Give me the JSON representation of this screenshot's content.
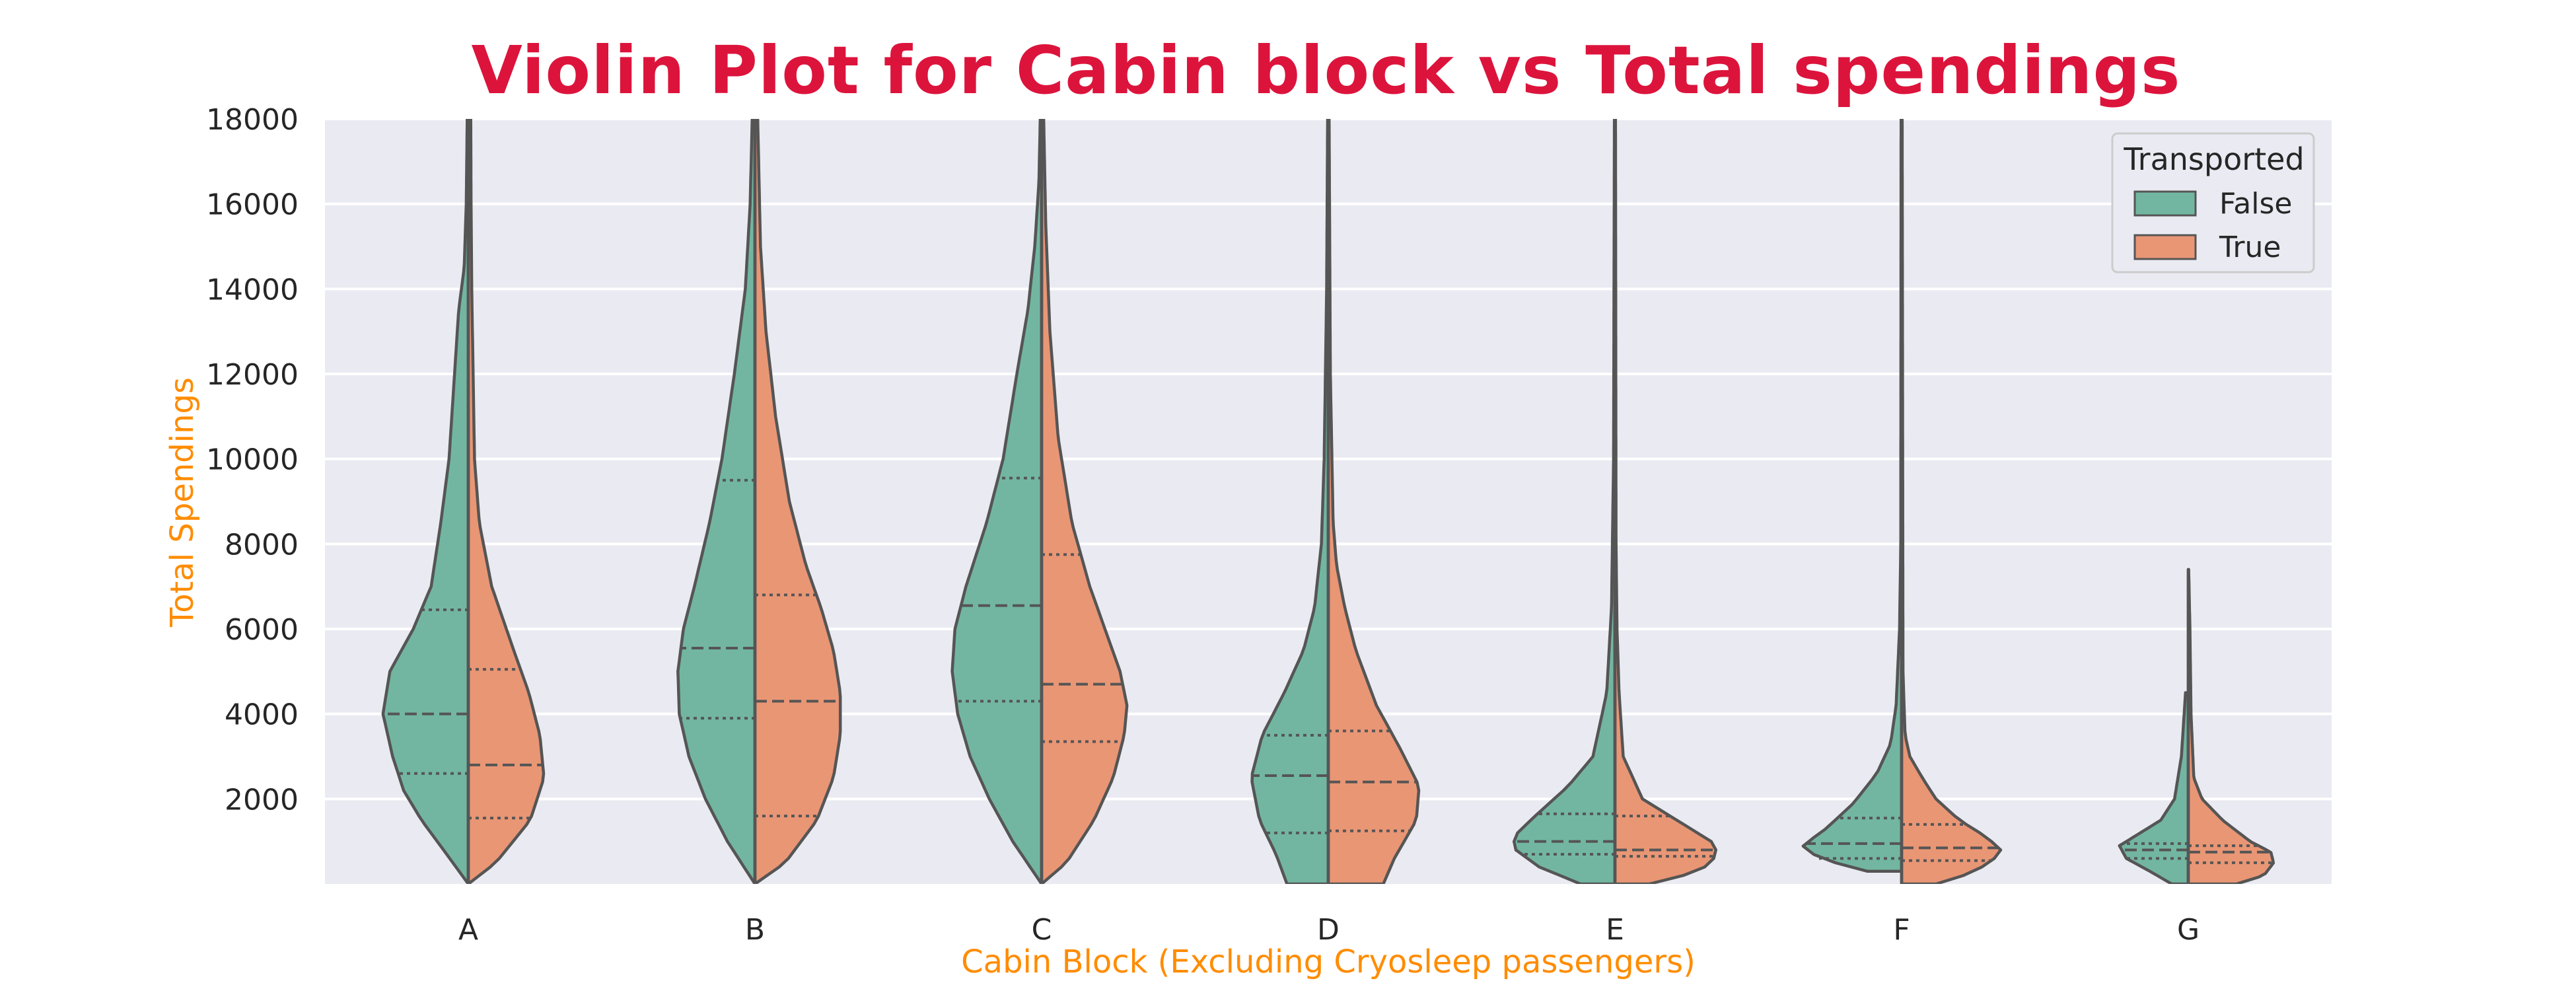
{
  "chart_data": {
    "type": "violin",
    "title": "Violin Plot for Cabin block vs Total spendings",
    "xlabel": "Cabin Block (Excluding Cryosleep passengers)",
    "ylabel": "Total Spendings",
    "ylim": [
      0,
      18000
    ],
    "yticks": [
      2000,
      4000,
      6000,
      8000,
      10000,
      12000,
      14000,
      16000,
      18000
    ],
    "categories": [
      "A",
      "B",
      "C",
      "D",
      "E",
      "F",
      "G"
    ],
    "legend": {
      "title": "Transported",
      "position": "top-right",
      "entries": [
        "False",
        "True"
      ]
    },
    "grid": true,
    "colors": {
      "False": "#72b6a1",
      "True": "#e99675",
      "background": "#eaeaf2",
      "title": "#dc143c",
      "axis_label": "#ff8c00",
      "outline": "#555555"
    },
    "series": [
      {
        "name": "False",
        "quartiles": [
          [
            2600,
            4000,
            6450
          ],
          [
            3900,
            5550,
            9500
          ],
          [
            4300,
            6550,
            9550
          ],
          [
            1200,
            2550,
            3500
          ],
          [
            700,
            1000,
            1650
          ],
          [
            600,
            950,
            1550
          ],
          [
            600,
            800,
            950
          ]
        ],
        "profiles": [
          [
            [
              0,
              0.0
            ],
            [
              800,
              0.18
            ],
            [
              1500,
              0.34
            ],
            [
              2200,
              0.47
            ],
            [
              3000,
              0.55
            ],
            [
              4000,
              0.62
            ],
            [
              5000,
              0.57
            ],
            [
              6000,
              0.4
            ],
            [
              7000,
              0.27
            ],
            [
              8500,
              0.2
            ],
            [
              10000,
              0.14
            ],
            [
              12000,
              0.1
            ],
            [
              13500,
              0.07
            ],
            [
              14500,
              0.03
            ],
            [
              16000,
              0.015
            ],
            [
              18000,
              0.008
            ]
          ],
          [
            [
              0,
              0.0
            ],
            [
              1000,
              0.2
            ],
            [
              2000,
              0.36
            ],
            [
              3000,
              0.48
            ],
            [
              4000,
              0.55
            ],
            [
              5000,
              0.56
            ],
            [
              6000,
              0.52
            ],
            [
              7000,
              0.44
            ],
            [
              8500,
              0.33
            ],
            [
              10000,
              0.24
            ],
            [
              12000,
              0.15
            ],
            [
              14000,
              0.07
            ],
            [
              16000,
              0.035
            ],
            [
              18000,
              0.02
            ]
          ],
          [
            [
              0,
              0.0
            ],
            [
              1000,
              0.21
            ],
            [
              2000,
              0.38
            ],
            [
              3000,
              0.52
            ],
            [
              4000,
              0.61
            ],
            [
              5000,
              0.65
            ],
            [
              6000,
              0.63
            ],
            [
              7000,
              0.55
            ],
            [
              8500,
              0.4
            ],
            [
              10000,
              0.28
            ],
            [
              12000,
              0.18
            ],
            [
              13500,
              0.1
            ],
            [
              15000,
              0.05
            ],
            [
              16500,
              0.02
            ],
            [
              18000,
              0.01
            ]
          ],
          [
            [
              0,
              0.3
            ],
            [
              700,
              0.38
            ],
            [
              1500,
              0.5
            ],
            [
              2500,
              0.56
            ],
            [
              3500,
              0.48
            ],
            [
              4500,
              0.32
            ],
            [
              5500,
              0.18
            ],
            [
              6500,
              0.1
            ],
            [
              8000,
              0.05
            ],
            [
              10000,
              0.03
            ],
            [
              14000,
              0.012
            ],
            [
              18000,
              0.005
            ]
          ],
          [
            [
              0,
              0.25
            ],
            [
              400,
              0.55
            ],
            [
              800,
              0.72
            ],
            [
              1100,
              0.74
            ],
            [
              1600,
              0.58
            ],
            [
              2300,
              0.34
            ],
            [
              3000,
              0.16
            ],
            [
              4500,
              0.06
            ],
            [
              6500,
              0.025
            ],
            [
              10000,
              0.01
            ],
            [
              18000,
              0.004
            ]
          ],
          [
            [
              300,
              0.25
            ],
            [
              600,
              0.6
            ],
            [
              900,
              0.72
            ],
            [
              1300,
              0.55
            ],
            [
              1900,
              0.35
            ],
            [
              2600,
              0.18
            ],
            [
              3300,
              0.08
            ],
            [
              4200,
              0.04
            ],
            [
              6000,
              0.015
            ],
            [
              8000,
              0.006
            ],
            [
              18000,
              0.004
            ]
          ],
          [
            [
              0,
              0.12
            ],
            [
              300,
              0.28
            ],
            [
              600,
              0.45
            ],
            [
              900,
              0.5
            ],
            [
              1200,
              0.35
            ],
            [
              1500,
              0.2
            ],
            [
              2000,
              0.1
            ],
            [
              3000,
              0.05
            ],
            [
              4500,
              0.02
            ]
          ]
        ]
      },
      {
        "name": "True",
        "quartiles": [
          [
            1550,
            2800,
            5050
          ],
          [
            1600,
            4300,
            6800
          ],
          [
            3350,
            4700,
            7750
          ],
          [
            1250,
            2400,
            3600
          ],
          [
            650,
            800,
            1600
          ],
          [
            550,
            850,
            1400
          ],
          [
            500,
            750,
            900
          ]
        ],
        "profiles": [
          [
            [
              0,
              0.0
            ],
            [
              500,
              0.2
            ],
            [
              1500,
              0.45
            ],
            [
              2500,
              0.55
            ],
            [
              3500,
              0.52
            ],
            [
              4500,
              0.44
            ],
            [
              5500,
              0.33
            ],
            [
              7000,
              0.17
            ],
            [
              8500,
              0.08
            ],
            [
              10000,
              0.045
            ],
            [
              12000,
              0.035
            ],
            [
              14000,
              0.025
            ],
            [
              16000,
              0.02
            ],
            [
              18000,
              0.018
            ]
          ],
          [
            [
              0,
              0.0
            ],
            [
              500,
              0.22
            ],
            [
              1500,
              0.45
            ],
            [
              2500,
              0.57
            ],
            [
              3500,
              0.62
            ],
            [
              4500,
              0.62
            ],
            [
              5500,
              0.57
            ],
            [
              6500,
              0.48
            ],
            [
              7500,
              0.37
            ],
            [
              9000,
              0.25
            ],
            [
              11000,
              0.15
            ],
            [
              13000,
              0.08
            ],
            [
              15000,
              0.04
            ],
            [
              18000,
              0.02
            ]
          ],
          [
            [
              0,
              0.0
            ],
            [
              500,
              0.18
            ],
            [
              1500,
              0.38
            ],
            [
              2500,
              0.52
            ],
            [
              3500,
              0.6
            ],
            [
              4200,
              0.62
            ],
            [
              5000,
              0.57
            ],
            [
              6000,
              0.46
            ],
            [
              7000,
              0.35
            ],
            [
              8500,
              0.22
            ],
            [
              10500,
              0.12
            ],
            [
              13000,
              0.06
            ],
            [
              15500,
              0.03
            ],
            [
              18000,
              0.015
            ]
          ],
          [
            [
              0,
              0.4
            ],
            [
              600,
              0.48
            ],
            [
              1500,
              0.64
            ],
            [
              2300,
              0.66
            ],
            [
              3200,
              0.52
            ],
            [
              4200,
              0.35
            ],
            [
              5500,
              0.2
            ],
            [
              6500,
              0.12
            ],
            [
              7500,
              0.06
            ],
            [
              8500,
              0.035
            ],
            [
              12000,
              0.015
            ],
            [
              18000,
              0.006
            ]
          ],
          [
            [
              0,
              0.25
            ],
            [
              300,
              0.62
            ],
            [
              700,
              0.75
            ],
            [
              1000,
              0.7
            ],
            [
              1500,
              0.45
            ],
            [
              2000,
              0.2
            ],
            [
              3000,
              0.06
            ],
            [
              4500,
              0.03
            ],
            [
              6000,
              0.015
            ],
            [
              8000,
              0.008
            ],
            [
              18000,
              0.004
            ]
          ],
          [
            [
              0,
              0.25
            ],
            [
              200,
              0.45
            ],
            [
              500,
              0.65
            ],
            [
              800,
              0.72
            ],
            [
              1100,
              0.62
            ],
            [
              1500,
              0.42
            ],
            [
              2000,
              0.25
            ],
            [
              2500,
              0.15
            ],
            [
              3000,
              0.06
            ],
            [
              3500,
              0.025
            ],
            [
              5000,
              0.01
            ],
            [
              18000,
              0.004
            ]
          ],
          [
            [
              0,
              0.35
            ],
            [
              200,
              0.55
            ],
            [
              500,
              0.62
            ],
            [
              750,
              0.6
            ],
            [
              1000,
              0.45
            ],
            [
              1500,
              0.25
            ],
            [
              2000,
              0.1
            ],
            [
              2500,
              0.04
            ],
            [
              4000,
              0.02
            ],
            [
              6000,
              0.012
            ],
            [
              7400,
              0.003
            ]
          ]
        ]
      }
    ]
  }
}
